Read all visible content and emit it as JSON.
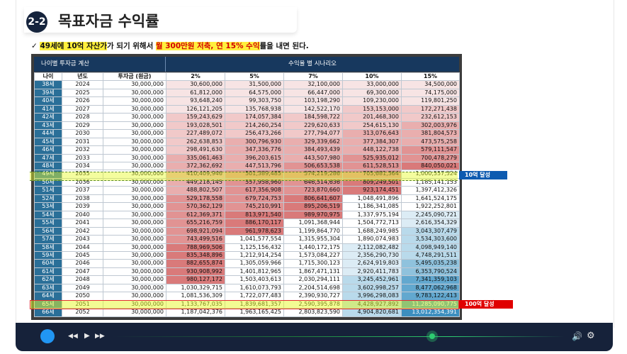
{
  "heading": {
    "badge": "2-2",
    "title": "목표자금 수익률"
  },
  "subtitle": {
    "check": "✓",
    "p1": "49세에 10억 자산가",
    "p2": "가 되기 위해서 ",
    "p3": "월 300만원 저축, 연 15% 수익",
    "p4": "률을 내면 된다."
  },
  "table": {
    "group_left": "나이별 투자금 계산",
    "group_right": "수익율 별 시나리오",
    "headers": [
      "나이",
      "년도",
      "투자금 (원금)",
      "2%",
      "5%",
      "7%",
      "10%",
      "15%"
    ],
    "rows": [
      [
        "38세",
        "2024",
        "30,000,000",
        "30,600,000",
        "31,500,000",
        "32,100,000",
        "33,000,000",
        "34,500,000"
      ],
      [
        "39세",
        "2025",
        "30,000,000",
        "61,812,000",
        "64,575,000",
        "66,447,000",
        "69,300,000",
        "74,175,000"
      ],
      [
        "40세",
        "2026",
        "30,000,000",
        "93,648,240",
        "99,303,750",
        "103,198,290",
        "109,230,000",
        "119,801,250"
      ],
      [
        "41세",
        "2027",
        "30,000,000",
        "126,121,205",
        "135,768,938",
        "142,522,170",
        "153,153,000",
        "172,271,438"
      ],
      [
        "42세",
        "2028",
        "30,000,000",
        "159,243,629",
        "174,057,384",
        "184,598,722",
        "201,468,300",
        "232,612,153"
      ],
      [
        "43세",
        "2029",
        "30,000,000",
        "193,028,501",
        "214,260,254",
        "229,620,633",
        "254,615,130",
        "302,003,976"
      ],
      [
        "44세",
        "2030",
        "30,000,000",
        "227,489,072",
        "256,473,266",
        "277,794,077",
        "313,076,643",
        "381,804,573"
      ],
      [
        "45세",
        "2031",
        "30,000,000",
        "262,638,853",
        "300,796,930",
        "329,339,662",
        "377,384,307",
        "473,575,258"
      ],
      [
        "46세",
        "2032",
        "30,000,000",
        "298,491,630",
        "347,336,776",
        "384,493,439",
        "448,122,738",
        "579,111,547"
      ],
      [
        "47세",
        "2033",
        "30,000,000",
        "335,061,463",
        "396,203,615",
        "443,507,980",
        "525,935,012",
        "700,478,279"
      ],
      [
        "48세",
        "2034",
        "30,000,000",
        "372,362,692",
        "447,513,796",
        "506,653,538",
        "611,528,513",
        "840,050,021"
      ],
      [
        "49세",
        "2035",
        "30,000,000",
        "410,409,946",
        "501,389,485",
        "574,219,286",
        "705,681,364",
        "1,000,557,524"
      ],
      [
        "50세",
        "2036",
        "30,000,000",
        "449,218,145",
        "557,958,960",
        "646,514,636",
        "809,249,501",
        "1,185,141,153"
      ],
      [
        "51세",
        "2037",
        "30,000,000",
        "488,802,507",
        "617,356,908",
        "723,870,660",
        "923,174,451",
        "1,397,412,326"
      ],
      [
        "52세",
        "2038",
        "30,000,000",
        "529,178,558",
        "679,724,753",
        "806,641,607",
        "1,048,491,896",
        "1,641,524,175"
      ],
      [
        "53세",
        "2039",
        "30,000,000",
        "570,362,129",
        "745,210,991",
        "895,206,519",
        "1,186,341,085",
        "1,922,252,801"
      ],
      [
        "54세",
        "2040",
        "30,000,000",
        "612,369,371",
        "813,971,540",
        "989,970,975",
        "1,337,975,194",
        "2,245,090,721"
      ],
      [
        "55세",
        "2041",
        "30,000,000",
        "655,216,759",
        "886,170,117",
        "1,091,368,944",
        "1,504,772,713",
        "2,616,354,329"
      ],
      [
        "56세",
        "2042",
        "30,000,000",
        "698,921,094",
        "961,978,623",
        "1,199,864,770",
        "1,688,249,985",
        "3,043,307,479"
      ],
      [
        "57세",
        "2043",
        "30,000,000",
        "743,499,516",
        "1,041,577,554",
        "1,315,955,304",
        "1,890,074,983",
        "3,534,303,600"
      ],
      [
        "58세",
        "2044",
        "30,000,000",
        "788,969,506",
        "1,125,156,432",
        "1,440,172,175",
        "2,112,082,482",
        "4,098,949,140"
      ],
      [
        "59세",
        "2045",
        "30,000,000",
        "835,348,896",
        "1,212,914,254",
        "1,573,084,227",
        "2,356,290,730",
        "4,748,291,511"
      ],
      [
        "60세",
        "2046",
        "30,000,000",
        "882,655,874",
        "1,305,059,966",
        "1,715,300,123",
        "2,624,919,803",
        "5,495,035,238"
      ],
      [
        "61세",
        "2047",
        "30,000,000",
        "930,908,992",
        "1,401,812,965",
        "1,867,471,131",
        "2,920,411,783",
        "6,353,790,524"
      ],
      [
        "62세",
        "2048",
        "30,000,000",
        "980,127,172",
        "1,503,403,613",
        "2,030,294,111",
        "3,245,452,961",
        "7,341,359,103"
      ],
      [
        "63세",
        "2049",
        "30,000,000",
        "1,030,329,715",
        "1,610,073,793",
        "2,204,514,698",
        "3,602,998,257",
        "8,477,062,968"
      ],
      [
        "64세",
        "2050",
        "30,000,000",
        "1,081,536,309",
        "1,722,077,483",
        "2,390,930,727",
        "3,996,298,083",
        "9,783,122,413"
      ],
      [
        "65세",
        "2051",
        "30,000,000",
        "1,133,767,035",
        "1,839,681,357",
        "2,590,395,878",
        "4,428,927,892",
        "11,285,090,775"
      ],
      [
        "66세",
        "2052",
        "30,000,000",
        "1,187,042,376",
        "1,963,165,425",
        "2,803,823,590",
        "4,904,820,681",
        "13,012,354,391"
      ]
    ]
  },
  "tags": {
    "ten": "10억 달성",
    "hundred": "100억 달성"
  },
  "player": {
    "prev": "◀◀",
    "play": "▶",
    "next": "▶▶",
    "volume": "🔊",
    "settings": "⚙"
  },
  "colors": {
    "accent_navy": "#17385e",
    "age_col": "#2a6f98",
    "tag_blue": "#0d5bb0",
    "tag_red": "#e00000",
    "player_bg": "#16223a"
  }
}
